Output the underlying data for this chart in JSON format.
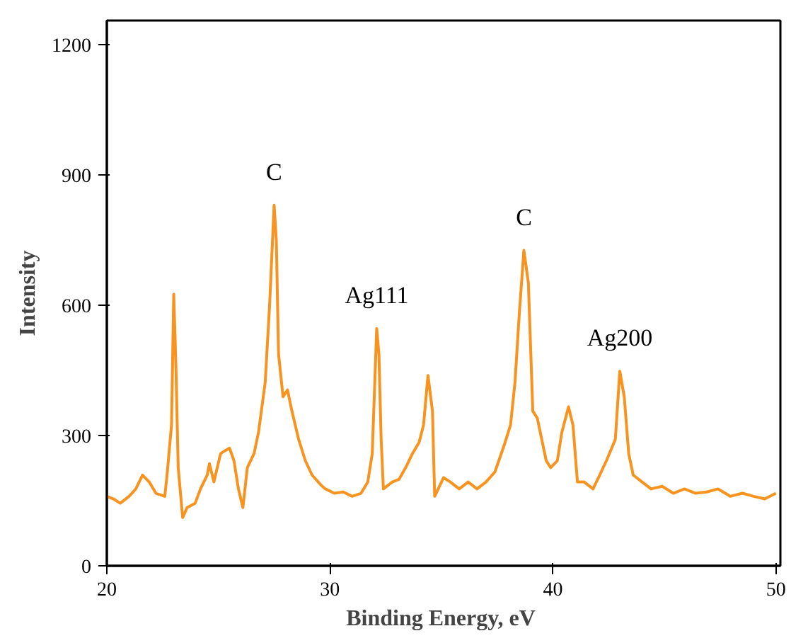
{
  "chart_data": {
    "type": "line",
    "xlabel": "Binding Energy,  eV",
    "ylabel": "Intensity",
    "x": [
      20,
      20.3,
      20.6,
      21.0,
      21.3,
      21.6,
      21.9,
      22.2,
      22.6,
      22.7,
      22.9,
      23.0,
      23.1,
      23.2,
      23.4,
      23.6,
      23.96,
      24.2,
      24.5,
      24.6,
      24.8,
      25.1,
      25.3,
      25.5,
      25.7,
      25.9,
      26.1,
      26.3,
      26.6,
      26.8,
      27.1,
      27.3,
      27.5,
      27.6,
      27.7,
      27.9,
      28.1,
      28.3,
      28.6,
      28.9,
      29.2,
      29.6,
      29.8,
      30.2,
      30.6,
      31.0,
      31.4,
      31.7,
      31.9,
      32.1,
      32.2,
      32.3,
      32.4,
      32.8,
      33.1,
      33.4,
      33.7,
      34.0,
      34.2,
      34.4,
      34.6,
      34.7,
      35.1,
      35.4,
      35.8,
      36.2,
      36.6,
      37.0,
      37.4,
      37.8,
      38.1,
      38.3,
      38.5,
      38.7,
      38.9,
      39.1,
      39.3,
      39.5,
      39.7,
      39.9,
      40.2,
      40.4,
      40.7,
      40.9,
      41.1,
      41.4,
      41.8,
      42.1,
      42.4,
      42.8,
      43.0,
      43.2,
      43.4,
      43.6,
      44.0,
      44.4,
      44.9,
      45.4,
      45.9,
      46.4,
      46.9,
      47.4,
      47.95,
      48.5,
      49.0,
      49.5,
      50.0
    ],
    "series": [
      {
        "color": "#f7931e",
        "values": [
          160,
          154,
          144,
          160,
          177,
          209,
          193,
          167,
          160,
          209,
          324,
          625,
          455,
          226,
          111,
          134,
          144,
          177,
          209,
          235,
          193,
          258,
          265,
          271,
          242,
          177,
          134,
          226,
          258,
          307,
          422,
          602,
          830,
          748,
          487,
          389,
          405,
          356,
          291,
          242,
          209,
          186,
          177,
          167,
          170,
          160,
          167,
          193,
          258,
          546,
          487,
          291,
          177,
          193,
          199,
          226,
          258,
          284,
          324,
          438,
          356,
          160,
          203,
          193,
          177,
          193,
          177,
          193,
          216,
          275,
          324,
          422,
          585,
          726,
          651,
          356,
          340,
          291,
          242,
          226,
          242,
          307,
          366,
          324,
          193,
          193,
          177,
          209,
          242,
          291,
          448,
          389,
          258,
          209,
          193,
          177,
          183,
          167,
          177,
          167,
          170,
          177,
          160,
          167,
          160,
          154,
          167
        ]
      }
    ],
    "xlim": [
      20,
      50.2
    ],
    "ylim": [
      0,
      1255
    ],
    "xticks": [
      20,
      30,
      40,
      50
    ],
    "yticks": [
      0,
      300,
      600,
      900,
      1200
    ],
    "grid": false,
    "line_style": "solid",
    "annotations": [
      {
        "text": "C",
        "x": 27.5,
        "y": 830
      },
      {
        "text": "Ag111",
        "x": 32.1,
        "y": 546
      },
      {
        "text": "C",
        "x": 38.7,
        "y": 726
      },
      {
        "text": "Ag200",
        "x": 43.0,
        "y": 448
      }
    ]
  }
}
